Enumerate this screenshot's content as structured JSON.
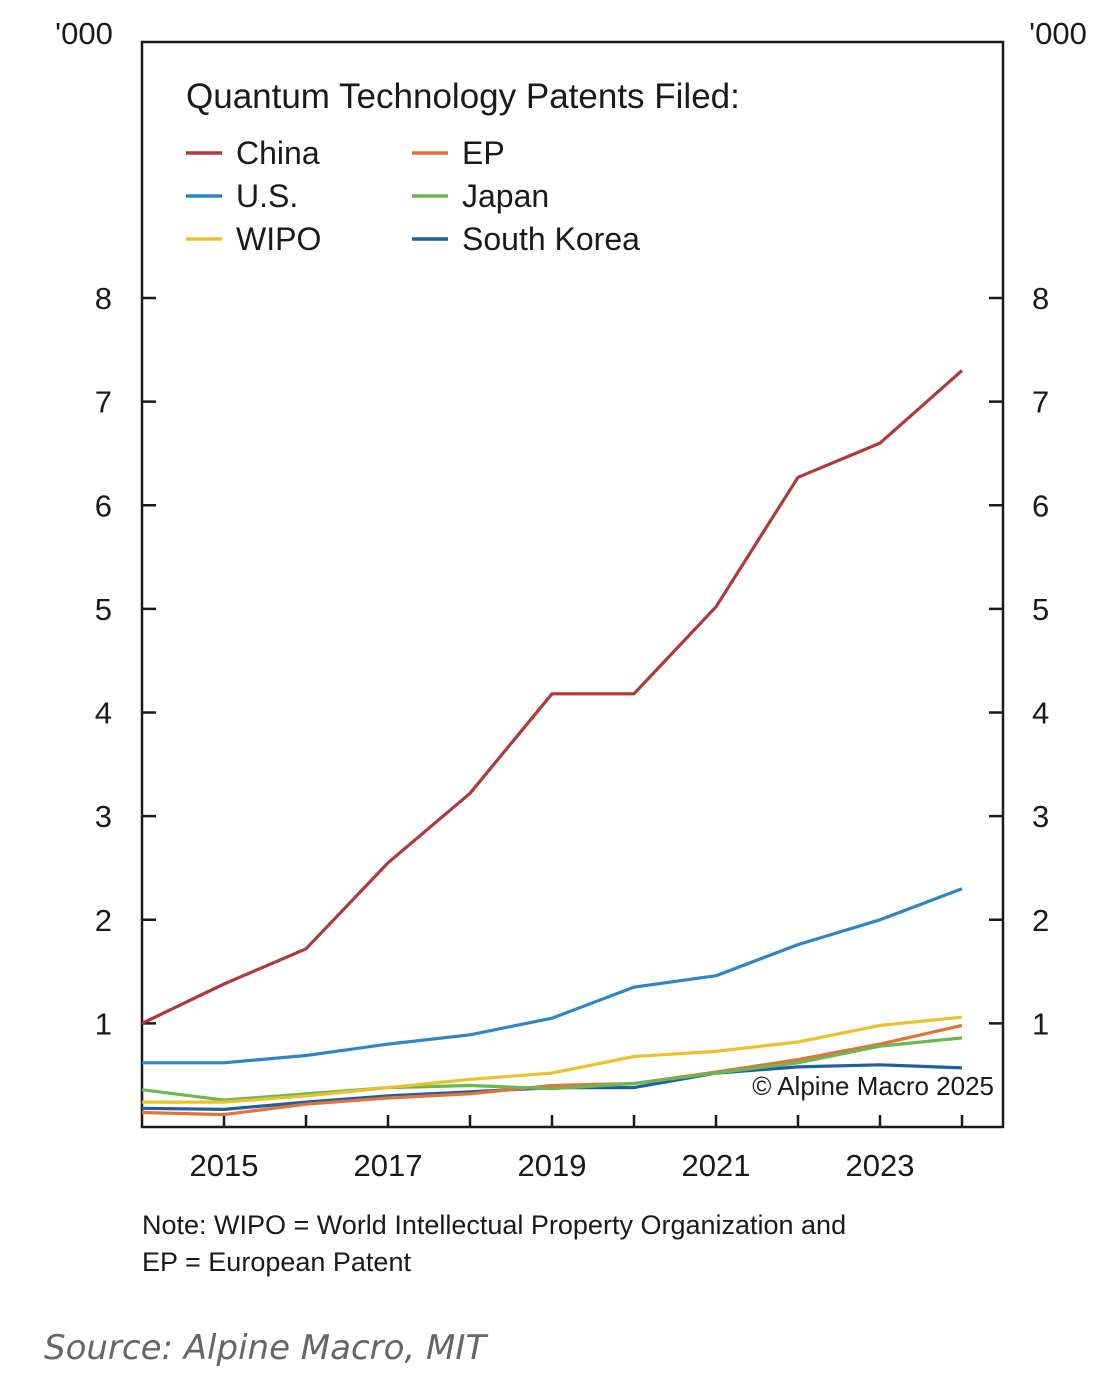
{
  "chart_data": {
    "type": "line",
    "title": "Quantum Technology Patents Filed:",
    "unit_left": "'000",
    "unit_right": "'000",
    "xlabel": "",
    "ylabel": "",
    "xlim": [
      2014,
      2024.5
    ],
    "ylim": [
      0,
      8
    ],
    "x_tick_labels": [
      "2015",
      "2017",
      "2019",
      "2021",
      "2023"
    ],
    "x_tick_values": [
      2015,
      2017,
      2019,
      2021,
      2023
    ],
    "y_tick_labels": [
      "1",
      "2",
      "3",
      "4",
      "5",
      "6",
      "7",
      "8"
    ],
    "y_tick_values": [
      1,
      2,
      3,
      4,
      5,
      6,
      7,
      8
    ],
    "grid": false,
    "legend_position": "top-left",
    "x": [
      2014,
      2015,
      2016,
      2017,
      2018,
      2019,
      2020,
      2021,
      2022,
      2023,
      2024
    ],
    "series": [
      {
        "name": "China",
        "color": "#b03a3a",
        "values": [
          1.0,
          1.38,
          1.72,
          2.55,
          3.22,
          4.18,
          4.18,
          5.02,
          6.27,
          6.6,
          7.3
        ]
      },
      {
        "name": "EP",
        "color": "#e2743a",
        "values": [
          0.14,
          0.12,
          0.22,
          0.28,
          0.32,
          0.4,
          0.42,
          0.53,
          0.65,
          0.8,
          0.98
        ]
      },
      {
        "name": "U.S.",
        "color": "#2e86c8",
        "values": [
          0.62,
          0.62,
          0.69,
          0.8,
          0.89,
          1.05,
          1.35,
          1.46,
          1.76,
          2.0,
          2.3
        ]
      },
      {
        "name": "Japan",
        "color": "#6ab84f",
        "values": [
          0.36,
          0.26,
          0.32,
          0.38,
          0.4,
          0.37,
          0.42,
          0.52,
          0.62,
          0.78,
          0.86
        ]
      },
      {
        "name": "WIPO",
        "color": "#ecc12c",
        "values": [
          0.24,
          0.24,
          0.3,
          0.38,
          0.46,
          0.52,
          0.68,
          0.73,
          0.82,
          0.98,
          1.06
        ]
      },
      {
        "name": "South Korea",
        "color": "#1f5fa0",
        "values": [
          0.18,
          0.17,
          0.24,
          0.3,
          0.34,
          0.38,
          0.38,
          0.52,
          0.58,
          0.6,
          0.57
        ]
      }
    ],
    "annotation": "© Alpine Macro 2025"
  },
  "footer": {
    "note_line1": "Note: WIPO = World Intellectual Property Organization and",
    "note_line2": "EP = European Patent",
    "source": "Source: Alpine Macro, MIT"
  }
}
